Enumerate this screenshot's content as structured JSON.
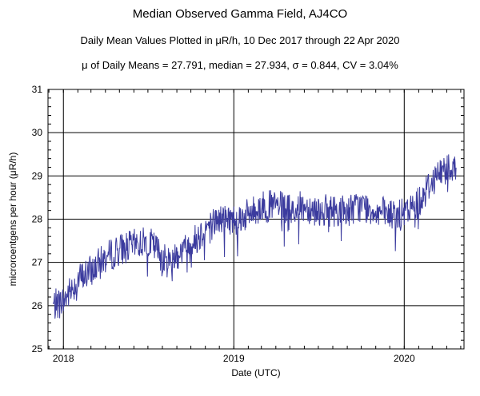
{
  "chart_data": {
    "type": "line",
    "title": "Median Observed Gamma Field, AJ4CO",
    "subtitle": "Daily Mean Values Plotted in μR/h, 10 Dec 2017 through 22 Apr 2020",
    "stats_line": "μ of Daily Means = 27.791,   median = 27.934,   σ = 0.844,   CV = 3.04%",
    "xlabel": "Date (UTC)",
    "ylabel": "microroentgens per hour (μR/h)",
    "xlim": [
      "2017-11-29",
      "2020-05-08"
    ],
    "ylim": [
      25,
      31
    ],
    "x_ticks": [
      "2018",
      "2019",
      "2020"
    ],
    "x_tick_dates": [
      "2018-01-01",
      "2019-01-01",
      "2020-01-01"
    ],
    "y_ticks": [
      25,
      26,
      27,
      28,
      29,
      30,
      31
    ],
    "grid": true,
    "line_color": "#3b3b9e",
    "series": [
      {
        "x": [
          "2017-12-10",
          "2018-01-01",
          "2018-02-01",
          "2018-03-01",
          "2018-04-01",
          "2018-05-01",
          "2018-06-01",
          "2018-07-01",
          "2018-07-20",
          "2018-08-10",
          "2018-09-01",
          "2018-10-01",
          "2018-11-01",
          "2018-12-01",
          "2019-01-01",
          "2019-02-01",
          "2019-03-01",
          "2019-04-01",
          "2019-05-01",
          "2019-06-01",
          "2019-07-01",
          "2019-08-01",
          "2019-09-01",
          "2019-10-01",
          "2019-11-01",
          "2019-12-01",
          "2020-01-01",
          "2020-02-01",
          "2020-03-01",
          "2020-04-01",
          "2020-04-22"
        ],
        "y": [
          26.0,
          26.1,
          26.6,
          26.8,
          27.1,
          27.3,
          27.4,
          27.5,
          27.3,
          27.0,
          27.2,
          27.4,
          27.8,
          28.0,
          28.0,
          28.1,
          28.3,
          28.3,
          28.2,
          28.3,
          28.2,
          28.2,
          28.2,
          28.3,
          28.2,
          28.1,
          28.1,
          28.4,
          28.9,
          29.2,
          29.3
        ]
      }
    ]
  }
}
